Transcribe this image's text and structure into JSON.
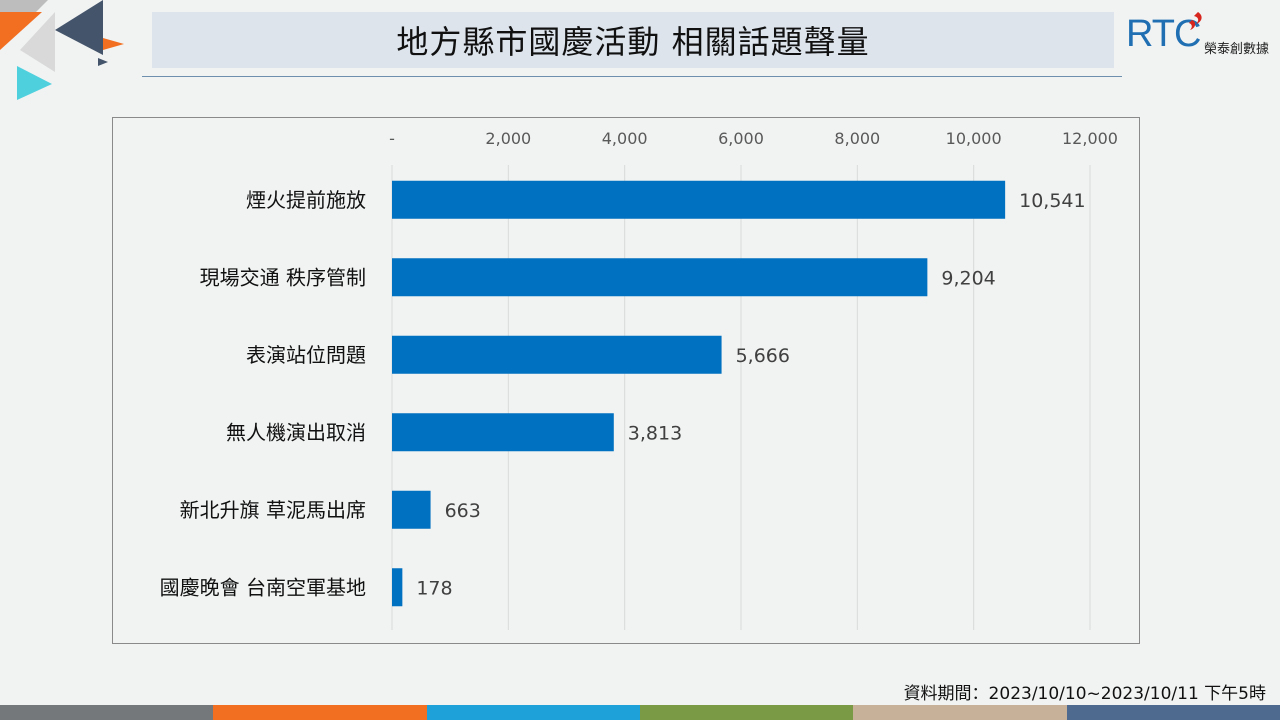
{
  "header": {
    "title": "地方縣市國慶活動 相關話題聲量"
  },
  "brand": {
    "letters": "RTC",
    "subtitle": "榮泰創數據",
    "color": "#1f6fb2",
    "mark_color": "#d7261e"
  },
  "footnote": "資料期間：2023/10/10~2023/10/11 下午5時",
  "colors": {
    "bar": "#0070c0",
    "gridline": "#d9d9d9",
    "stripe": [
      "#75787b",
      "#f26f21",
      "#1da1d8",
      "#7b9a45",
      "#c7b299",
      "#4e6b8f"
    ]
  },
  "chart_data": {
    "type": "bar",
    "orientation": "horizontal",
    "categories": [
      "煙火提前施放",
      "現場交通 秩序管制",
      "表演站位問題",
      "無人機演出取消",
      "新北升旗 草泥馬出席",
      "國慶晚會 台南空軍基地"
    ],
    "values": [
      10541,
      9204,
      5666,
      3813,
      663,
      178
    ],
    "value_labels": [
      "10,541",
      "9,204",
      "5,666",
      "3,813",
      "663",
      "178"
    ],
    "xlim": [
      0,
      12000
    ],
    "xticks": [
      0,
      2000,
      4000,
      6000,
      8000,
      10000,
      12000
    ],
    "xtick_labels": [
      "-",
      "2,000",
      "4,000",
      "6,000",
      "8,000",
      "10,000",
      "12,000"
    ],
    "axis_position": "top",
    "grid": true,
    "legend": "none",
    "title": "",
    "xlabel": "",
    "ylabel": ""
  }
}
